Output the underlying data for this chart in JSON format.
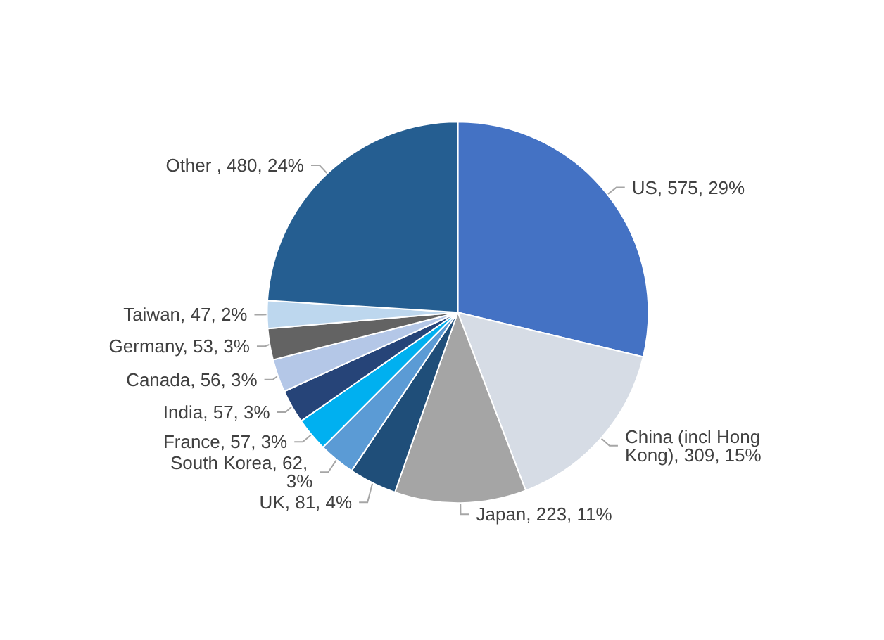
{
  "chart_data": {
    "type": "pie",
    "categories": [
      "US",
      "China (incl Hong Kong)",
      "Japan",
      "UK",
      "South Korea",
      "France",
      "India",
      "Canada",
      "Germany",
      "Taiwan",
      "Other "
    ],
    "values": [
      575,
      309,
      223,
      81,
      62,
      57,
      57,
      56,
      53,
      47,
      480
    ],
    "value_labels": [
      "575, 29%",
      "309, 15%",
      "223, 11%",
      "81, 4%",
      "62, 3%",
      "57, 3%",
      "57, 3%",
      "56, 3%",
      "53, 3%",
      "47, 2%",
      "480, 24%"
    ],
    "colors": [
      "#4472c4",
      "#d6dce5",
      "#a5a5a5",
      "#1f4e79",
      "#5b9bd5",
      "#00b0f0",
      "#264478",
      "#b4c7e7",
      "#636363",
      "#bdd7ee",
      "#255e91"
    ],
    "legend": false
  }
}
